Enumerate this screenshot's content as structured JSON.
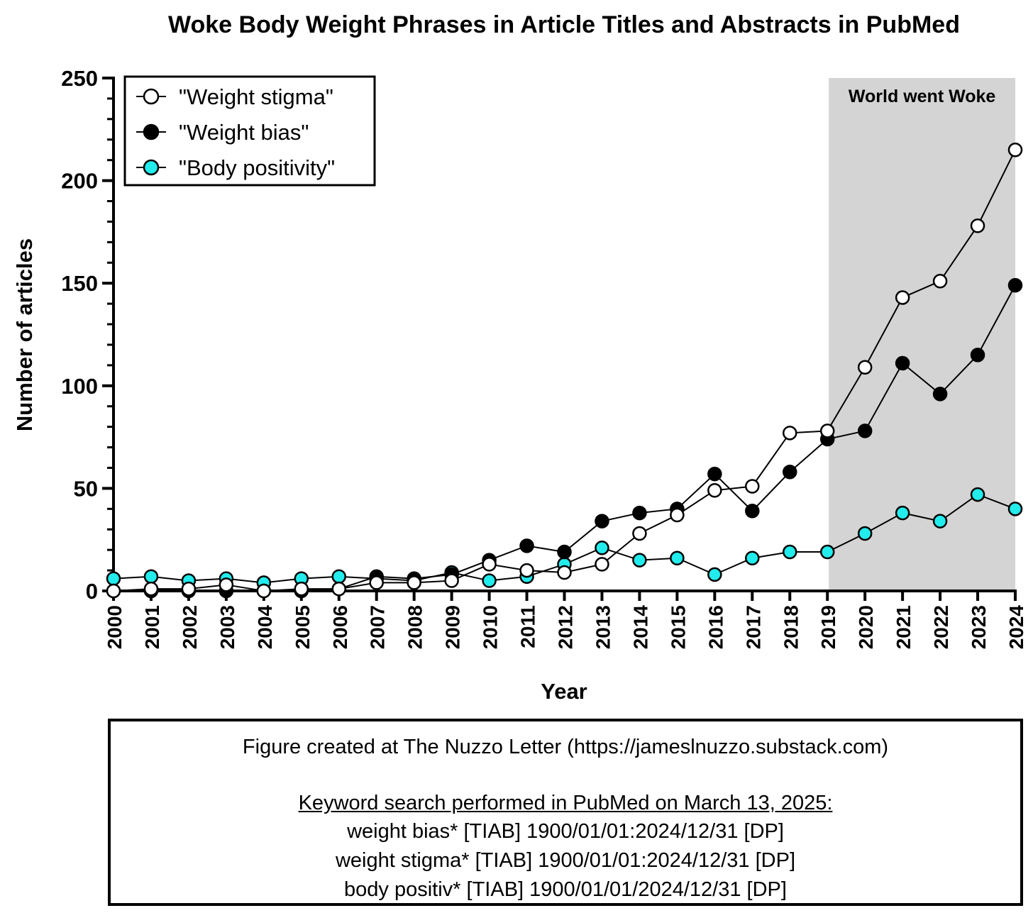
{
  "chart_data": {
    "type": "line",
    "title": "Woke Body Weight Phrases in Article Titles and Abstracts in PubMed",
    "xlabel": "Year",
    "ylabel": "Number of articles",
    "ylim": [
      0,
      250
    ],
    "yticks": [
      0,
      50,
      100,
      150,
      200,
      250
    ],
    "x": [
      2000,
      2001,
      2002,
      2003,
      2004,
      2005,
      2006,
      2007,
      2008,
      2009,
      2010,
      2011,
      2012,
      2013,
      2014,
      2015,
      2016,
      2017,
      2018,
      2019,
      2020,
      2021,
      2022,
      2023,
      2024
    ],
    "x_labels": [
      "2000",
      "2001",
      "2002",
      "2003",
      "2004",
      "2005",
      "2006",
      "2007",
      "2008",
      "2009",
      "2010",
      "2011",
      "2012",
      "2013",
      "2014",
      "2015",
      "2016",
      "2017",
      "2018",
      "2019",
      "2020",
      "2021",
      "2022",
      "2023",
      "2024"
    ],
    "series": [
      {
        "name": "\"Weight stigma\"",
        "marker_fill": "#ffffff",
        "values": [
          0,
          1,
          1,
          3,
          0,
          1,
          1,
          4,
          4,
          5,
          13,
          10,
          9,
          13,
          28,
          37,
          49,
          51,
          77,
          78,
          109,
          143,
          151,
          178,
          215
        ]
      },
      {
        "name": "\"Weight bias\"",
        "marker_fill": "#000000",
        "values": [
          0,
          0,
          0,
          0,
          0,
          0,
          1,
          7,
          6,
          8,
          15,
          22,
          19,
          34,
          38,
          40,
          57,
          39,
          58,
          74,
          78,
          111,
          96,
          115,
          149
        ]
      },
      {
        "name": "\"Body positivity\"",
        "marker_fill": "#22ecec",
        "values": [
          6,
          7,
          5,
          6,
          4,
          6,
          7,
          6,
          5,
          9,
          5,
          7,
          13,
          21,
          15,
          16,
          8,
          16,
          19,
          19,
          28,
          38,
          34,
          47,
          40
        ]
      }
    ],
    "shaded_region": {
      "x_start": 2019,
      "x_end": 2024,
      "label": "World went Woke",
      "color": "#d4d4d4"
    },
    "legend_position": "top-left"
  },
  "notes": {
    "credit": "Figure created at The Nuzzo Letter (https://jameslnuzzo.substack.com)",
    "heading": "Keyword search performed in PubMed on March 13, 2025:",
    "queries": [
      "weight bias* [TIAB] 1900/01/01:2024/12/31 [DP]",
      "weight stigma* [TIAB] 1900/01/01:2024/12/31 [DP]",
      "body positiv* [TIAB] 1900/01/01/2024/12/31 [DP]"
    ]
  }
}
